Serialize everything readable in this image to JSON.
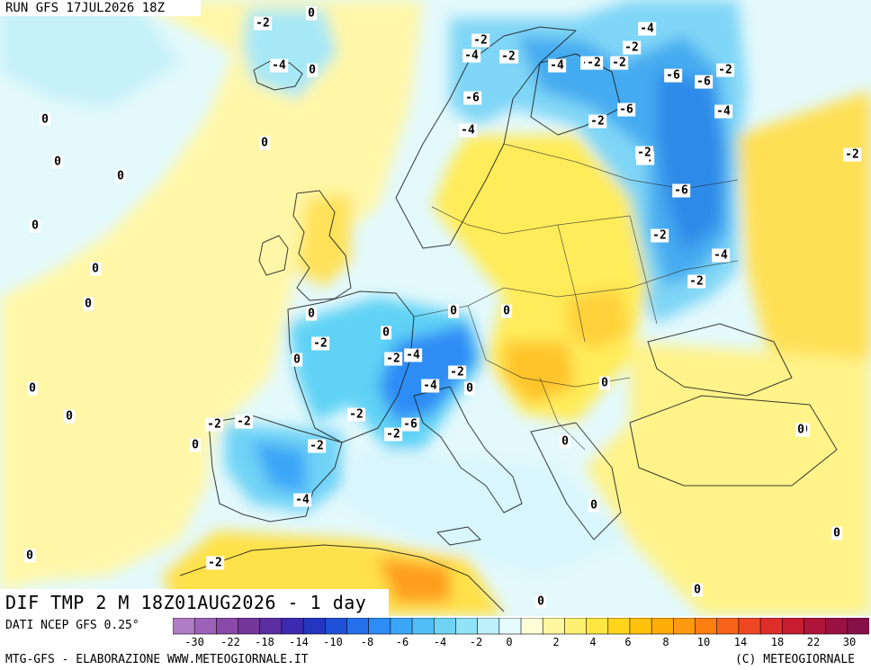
{
  "header": {
    "run_label": "RUN GFS 17JUL2026 18Z"
  },
  "map_title": {
    "text": "DIF TMP 2 M 18Z01AUG2026 - 1 day"
  },
  "source": {
    "text": "DATI NCEP GFS 0.25°"
  },
  "footer": {
    "left": "MTG-GFS - ELABORAZIONE WWW.METEOGIORNALE.IT",
    "right": "(C) METEOGIORNALE"
  },
  "legend": {
    "ticks": [
      "-30",
      "-22",
      "-18",
      "-14",
      "-10",
      "-8",
      "-6",
      "-4",
      "-2",
      "0",
      "2",
      "4",
      "6",
      "8",
      "10",
      "14",
      "18",
      "22",
      "30"
    ],
    "colors": [
      "#b07cc6",
      "#9c62b8",
      "#8a4aa8",
      "#73379a",
      "#5a2ea0",
      "#3d2ab0",
      "#2436c0",
      "#1f50d8",
      "#2470ea",
      "#2d8cf5",
      "#3aa6f7",
      "#52bef8",
      "#6fd3f6",
      "#92e3f5",
      "#bdf0fa",
      "#e6fbfe",
      "#ffffd8",
      "#fff6a0",
      "#fff070",
      "#ffe640",
      "#ffd51c",
      "#ffc20c",
      "#ffad08",
      "#ff9910",
      "#ff7e12",
      "#f9621a",
      "#ef4622",
      "#df2e2a",
      "#c81c30",
      "#b01438",
      "#9a1040",
      "#861048"
    ],
    "accent_colors": {
      "cool": "#5fd2f5",
      "warm": "#ffe44a",
      "neutral": "#e9fafd"
    }
  },
  "contour_labels": [
    "0",
    "-2",
    "-4",
    "0",
    "0",
    "0",
    "0",
    "0",
    "0",
    "0",
    "0",
    "0",
    "0",
    "0",
    "0",
    "0",
    "0",
    "0",
    "0",
    "0",
    "0",
    "0",
    "0",
    "0",
    "0",
    "0",
    "0",
    "-2",
    "-4",
    "-2",
    "-2",
    "-4",
    "-2",
    "-2",
    "-2",
    "-6",
    "-4",
    "-2",
    "-4",
    "-2",
    "-6",
    "-2",
    "-6",
    "-4",
    "-6",
    "-4",
    "-6",
    "-4",
    "-2",
    "-2",
    "-2",
    "-4",
    "-2",
    "-4",
    "-2",
    "-6",
    "-2",
    "-2",
    "-2",
    "-2",
    "-2",
    "-4",
    "-2",
    "-2",
    "-2",
    "0",
    "0",
    "0"
  ]
}
